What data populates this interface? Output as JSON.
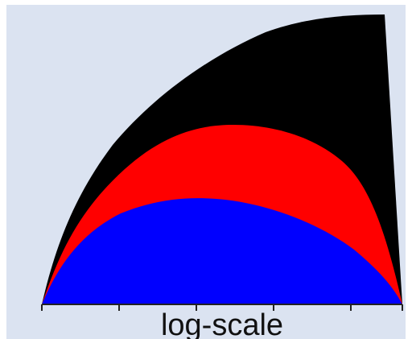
{
  "diagram": {
    "axis_label": "log-scale",
    "colors": {
      "background": "#dbe3f1",
      "outer_region": "#000000",
      "middle_region": "#ff0000",
      "inner_region": "#0000ff",
      "axis": "#222222"
    }
  }
}
